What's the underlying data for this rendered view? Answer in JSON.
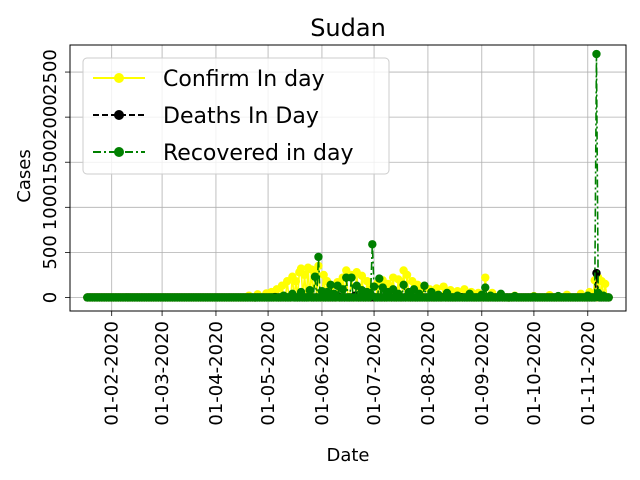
{
  "chart_data": {
    "type": "line",
    "title": "Sudan",
    "xlabel": "Date",
    "ylabel": "Cases",
    "x_start": "2020-01-18",
    "x_end": "2020-11-13",
    "xlim": [
      "2020-01-08",
      "2020-11-23"
    ],
    "ylim": [
      -150,
      2800
    ],
    "grid": true,
    "legend_position": "upper-left",
    "x_tick_labels": [
      "01-02-2020",
      "01-03-2020",
      "01-04-2020",
      "01-05-2020",
      "01-06-2020",
      "01-07-2020",
      "01-08-2020",
      "01-09-2020",
      "01-10-2020",
      "01-11-2020"
    ],
    "y_tick_labels": [
      "0",
      "500",
      "1000",
      "1500",
      "2000",
      "2500"
    ],
    "series": [
      {
        "name": "Confirm In day",
        "color": "#ffff00",
        "style": "solid",
        "points": [
          [
            "2020-04-20",
            20
          ],
          [
            "2020-04-25",
            35
          ],
          [
            "2020-04-30",
            45
          ],
          [
            "2020-05-03",
            60
          ],
          [
            "2020-05-06",
            90
          ],
          [
            "2020-05-09",
            130
          ],
          [
            "2020-05-12",
            180
          ],
          [
            "2020-05-15",
            230
          ],
          [
            "2020-05-17",
            180
          ],
          [
            "2020-05-19",
            280
          ],
          [
            "2020-05-20",
            320
          ],
          [
            "2020-05-22",
            250
          ],
          [
            "2020-05-24",
            330
          ],
          [
            "2020-05-26",
            310
          ],
          [
            "2020-05-28",
            280
          ],
          [
            "2020-05-30",
            350
          ],
          [
            "2020-06-02",
            250
          ],
          [
            "2020-06-04",
            180
          ],
          [
            "2020-06-07",
            130
          ],
          [
            "2020-06-10",
            170
          ],
          [
            "2020-06-13",
            220
          ],
          [
            "2020-06-15",
            300
          ],
          [
            "2020-06-18",
            250
          ],
          [
            "2020-06-21",
            280
          ],
          [
            "2020-06-24",
            240
          ],
          [
            "2020-06-27",
            180
          ],
          [
            "2020-06-30",
            120
          ],
          [
            "2020-07-03",
            160
          ],
          [
            "2020-07-06",
            190
          ],
          [
            "2020-07-09",
            150
          ],
          [
            "2020-07-12",
            220
          ],
          [
            "2020-07-15",
            200
          ],
          [
            "2020-07-18",
            300
          ],
          [
            "2020-07-20",
            250
          ],
          [
            "2020-07-23",
            180
          ],
          [
            "2020-07-26",
            140
          ],
          [
            "2020-07-29",
            110
          ],
          [
            "2020-08-02",
            90
          ],
          [
            "2020-08-06",
            100
          ],
          [
            "2020-08-10",
            120
          ],
          [
            "2020-08-14",
            80
          ],
          [
            "2020-08-18",
            70
          ],
          [
            "2020-08-22",
            90
          ],
          [
            "2020-08-26",
            60
          ],
          [
            "2020-08-30",
            50
          ],
          [
            "2020-09-03",
            220
          ],
          [
            "2020-09-07",
            50
          ],
          [
            "2020-09-12",
            30
          ],
          [
            "2020-09-20",
            20
          ],
          [
            "2020-10-01",
            15
          ],
          [
            "2020-10-10",
            25
          ],
          [
            "2020-10-20",
            30
          ],
          [
            "2020-10-28",
            40
          ],
          [
            "2020-11-02",
            60
          ],
          [
            "2020-11-05",
            190
          ],
          [
            "2020-11-07",
            220
          ],
          [
            "2020-11-09",
            180
          ],
          [
            "2020-11-11",
            150
          ]
        ]
      },
      {
        "name": "Deaths In Day",
        "color": "#000000",
        "style": "dashed",
        "points": [
          [
            "2020-05-05",
            5
          ],
          [
            "2020-05-15",
            8
          ],
          [
            "2020-05-25",
            12
          ],
          [
            "2020-06-01",
            10
          ],
          [
            "2020-06-10",
            15
          ],
          [
            "2020-06-20",
            20
          ],
          [
            "2020-06-30",
            10
          ],
          [
            "2020-07-10",
            8
          ],
          [
            "2020-07-20",
            5
          ],
          [
            "2020-08-10",
            3
          ],
          [
            "2020-08-20",
            5
          ],
          [
            "2020-09-01",
            2
          ],
          [
            "2020-10-01",
            1
          ],
          [
            "2020-11-06",
            270
          ],
          [
            "2020-11-07",
            3
          ]
        ]
      },
      {
        "name": "Recovered in day",
        "color": "#008000",
        "style": "dashdot",
        "points": [
          [
            "2020-05-10",
            20
          ],
          [
            "2020-05-15",
            40
          ],
          [
            "2020-05-20",
            60
          ],
          [
            "2020-05-25",
            80
          ],
          [
            "2020-05-28",
            230
          ],
          [
            "2020-05-30",
            450
          ],
          [
            "2020-06-01",
            70
          ],
          [
            "2020-06-04",
            60
          ],
          [
            "2020-06-06",
            140
          ],
          [
            "2020-06-08",
            40
          ],
          [
            "2020-06-10",
            130
          ],
          [
            "2020-06-13",
            90
          ],
          [
            "2020-06-15",
            220
          ],
          [
            "2020-06-18",
            220
          ],
          [
            "2020-06-21",
            130
          ],
          [
            "2020-06-24",
            80
          ],
          [
            "2020-06-27",
            60
          ],
          [
            "2020-06-29",
            40
          ],
          [
            "2020-06-30",
            590
          ],
          [
            "2020-07-01",
            120
          ],
          [
            "2020-07-04",
            210
          ],
          [
            "2020-07-06",
            110
          ],
          [
            "2020-07-09",
            60
          ],
          [
            "2020-07-12",
            90
          ],
          [
            "2020-07-15",
            40
          ],
          [
            "2020-07-18",
            140
          ],
          [
            "2020-07-21",
            60
          ],
          [
            "2020-07-24",
            90
          ],
          [
            "2020-07-27",
            40
          ],
          [
            "2020-07-30",
            130
          ],
          [
            "2020-08-03",
            60
          ],
          [
            "2020-08-07",
            30
          ],
          [
            "2020-08-12",
            50
          ],
          [
            "2020-08-18",
            20
          ],
          [
            "2020-08-25",
            40
          ],
          [
            "2020-09-01",
            30
          ],
          [
            "2020-09-03",
            110
          ],
          [
            "2020-09-06",
            20
          ],
          [
            "2020-09-12",
            40
          ],
          [
            "2020-09-20",
            15
          ],
          [
            "2020-10-01",
            10
          ],
          [
            "2020-10-15",
            15
          ],
          [
            "2020-11-01",
            20
          ],
          [
            "2020-11-06",
            2700
          ],
          [
            "2020-11-07",
            50
          ],
          [
            "2020-11-10",
            20
          ]
        ]
      }
    ]
  }
}
